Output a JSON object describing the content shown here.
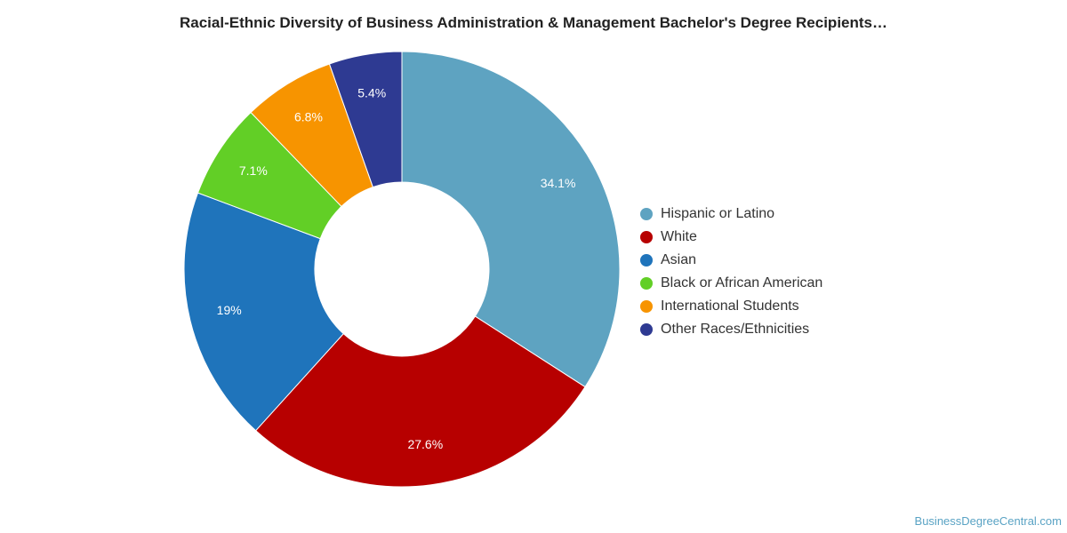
{
  "chart_data": {
    "type": "pie",
    "donut": true,
    "title": "Racial-Ethnic Diversity of Business Administration & Management Bachelor's Degree Recipients…",
    "legend_position": "right",
    "slices": [
      {
        "name": "Hispanic or Latino",
        "value": 34.1,
        "label": "34.1%",
        "color": "#5ea3c1"
      },
      {
        "name": "White",
        "value": 27.6,
        "label": "27.6%",
        "color": "#b70000"
      },
      {
        "name": "Asian",
        "value": 19.0,
        "label": "19%",
        "color": "#1f74bb"
      },
      {
        "name": "Black or African American",
        "value": 7.1,
        "label": "7.1%",
        "color": "#62cf26"
      },
      {
        "name": "International Students",
        "value": 6.8,
        "label": "6.8%",
        "color": "#f79400"
      },
      {
        "name": "Other Races/Ethnicities",
        "value": 5.4,
        "label": "5.4%",
        "color": "#2e3a92"
      }
    ]
  },
  "footer": {
    "watermark": "BusinessDegreeCentral.com"
  }
}
